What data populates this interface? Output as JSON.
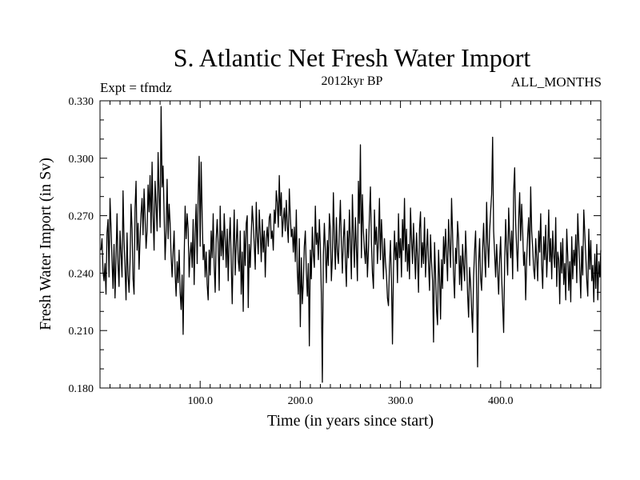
{
  "chart_data": {
    "type": "line",
    "title": "S. Atlantic Net Fresh Water Import",
    "subtitle": "2012kyr BP",
    "experiment": "Expt = tfmdz",
    "period": "ALL_MONTHS",
    "xlabel": "Time (in years since start)",
    "ylabel": "Fresh Water Import (in Sv)",
    "xlim": [
      0,
      500
    ],
    "ylim": [
      0.18,
      0.33
    ],
    "x_ticks": [
      100,
      200,
      300,
      400
    ],
    "x_tick_labels": [
      "100.0",
      "200.0",
      "300.0",
      "400.0"
    ],
    "y_ticks": [
      0.18,
      0.21,
      0.24,
      0.27,
      0.3,
      0.33
    ],
    "y_tick_labels": [
      "0.180",
      "0.210",
      "0.240",
      "0.270",
      "0.300",
      "0.330"
    ],
    "series": [
      {
        "name": "Fresh Water Import",
        "x_start": 1,
        "x_step": 1,
        "values": [
          0.252,
          0.258,
          0.241,
          0.236,
          0.245,
          0.229,
          0.261,
          0.268,
          0.238,
          0.279,
          0.264,
          0.247,
          0.232,
          0.255,
          0.227,
          0.248,
          0.271,
          0.245,
          0.233,
          0.262,
          0.25,
          0.238,
          0.283,
          0.257,
          0.243,
          0.226,
          0.261,
          0.239,
          0.23,
          0.246,
          0.276,
          0.263,
          0.237,
          0.229,
          0.274,
          0.288,
          0.252,
          0.266,
          0.242,
          0.258,
          0.271,
          0.279,
          0.26,
          0.284,
          0.269,
          0.253,
          0.262,
          0.286,
          0.272,
          0.291,
          0.261,
          0.298,
          0.27,
          0.252,
          0.288,
          0.276,
          0.262,
          0.303,
          0.281,
          0.264,
          0.327,
          0.285,
          0.296,
          0.271,
          0.247,
          0.262,
          0.289,
          0.258,
          0.276,
          0.266,
          0.249,
          0.238,
          0.251,
          0.262,
          0.24,
          0.228,
          0.246,
          0.235,
          0.252,
          0.23,
          0.221,
          0.239,
          0.208,
          0.247,
          0.275,
          0.258,
          0.271,
          0.263,
          0.238,
          0.25,
          0.256,
          0.243,
          0.268,
          0.234,
          0.261,
          0.276,
          0.245,
          0.28,
          0.301,
          0.254,
          0.298,
          0.27,
          0.247,
          0.255,
          0.238,
          0.251,
          0.234,
          0.226,
          0.252,
          0.239,
          0.262,
          0.248,
          0.271,
          0.244,
          0.23,
          0.258,
          0.268,
          0.255,
          0.231,
          0.275,
          0.249,
          0.262,
          0.247,
          0.271,
          0.258,
          0.243,
          0.263,
          0.236,
          0.257,
          0.269,
          0.246,
          0.224,
          0.252,
          0.273,
          0.239,
          0.255,
          0.268,
          0.247,
          0.241,
          0.262,
          0.229,
          0.251,
          0.22,
          0.262,
          0.244,
          0.266,
          0.27,
          0.222,
          0.255,
          0.243,
          0.26,
          0.275,
          0.266,
          0.255,
          0.242,
          0.277,
          0.259,
          0.25,
          0.273,
          0.261,
          0.246,
          0.268,
          0.251,
          0.262,
          0.238,
          0.258,
          0.264,
          0.254,
          0.269,
          0.271,
          0.258,
          0.262,
          0.252,
          0.273,
          0.266,
          0.283,
          0.277,
          0.264,
          0.291,
          0.27,
          0.282,
          0.259,
          0.268,
          0.274,
          0.262,
          0.278,
          0.265,
          0.256,
          0.284,
          0.27,
          0.259,
          0.263,
          0.251,
          0.264,
          0.246,
          0.273,
          0.241,
          0.229,
          0.258,
          0.212,
          0.248,
          0.224,
          0.235,
          0.254,
          0.262,
          0.241,
          0.228,
          0.245,
          0.202,
          0.252,
          0.237,
          0.264,
          0.25,
          0.243,
          0.275,
          0.255,
          0.261,
          0.247,
          0.268,
          0.254,
          0.229,
          0.183,
          0.249,
          0.266,
          0.252,
          0.235,
          0.257,
          0.244,
          0.271,
          0.263,
          0.236,
          0.248,
          0.282,
          0.258,
          0.242,
          0.269,
          0.251,
          0.245,
          0.263,
          0.278,
          0.255,
          0.24,
          0.258,
          0.268,
          0.246,
          0.233,
          0.262,
          0.248,
          0.273,
          0.256,
          0.237,
          0.281,
          0.259,
          0.243,
          0.269,
          0.253,
          0.236,
          0.288,
          0.266,
          0.307,
          0.248,
          0.281,
          0.262,
          0.252,
          0.245,
          0.263,
          0.238,
          0.252,
          0.27,
          0.285,
          0.256,
          0.24,
          0.232,
          0.273,
          0.255,
          0.264,
          0.245,
          0.257,
          0.279,
          0.247,
          0.268,
          0.255,
          0.237,
          0.258,
          0.246,
          0.239,
          0.227,
          0.223,
          0.244,
          0.257,
          0.236,
          0.203,
          0.242,
          0.262,
          0.247,
          0.256,
          0.235,
          0.271,
          0.248,
          0.258,
          0.238,
          0.268,
          0.252,
          0.279,
          0.246,
          0.263,
          0.241,
          0.255,
          0.237,
          0.274,
          0.258,
          0.245,
          0.266,
          0.252,
          0.237,
          0.261,
          0.248,
          0.23,
          0.263,
          0.272,
          0.243,
          0.256,
          0.245,
          0.269,
          0.238,
          0.252,
          0.263,
          0.245,
          0.231,
          0.26,
          0.246,
          0.236,
          0.204,
          0.256,
          0.24,
          0.221,
          0.213,
          0.252,
          0.238,
          0.216,
          0.247,
          0.232,
          0.259,
          0.245,
          0.263,
          0.25,
          0.236,
          0.268,
          0.254,
          0.243,
          0.279,
          0.261,
          0.239,
          0.227,
          0.253,
          0.245,
          0.267,
          0.258,
          0.234,
          0.249,
          0.231,
          0.255,
          0.244,
          0.236,
          0.262,
          0.248,
          0.229,
          0.217,
          0.243,
          0.235,
          0.221,
          0.209,
          0.238,
          0.252,
          0.262,
          0.232,
          0.191,
          0.245,
          0.258,
          0.237,
          0.231,
          0.252,
          0.266,
          0.249,
          0.238,
          0.277,
          0.256,
          0.243,
          0.262,
          0.272,
          0.281,
          0.311,
          0.262,
          0.25,
          0.238,
          0.255,
          0.241,
          0.229,
          0.247,
          0.259,
          0.238,
          0.224,
          0.209,
          0.245,
          0.268,
          0.252,
          0.239,
          0.274,
          0.259,
          0.248,
          0.262,
          0.237,
          0.283,
          0.295,
          0.266,
          0.253,
          0.241,
          0.268,
          0.282,
          0.257,
          0.276,
          0.262,
          0.244,
          0.251,
          0.226,
          0.247,
          0.26,
          0.269,
          0.244,
          0.285,
          0.262,
          0.253,
          0.242,
          0.237,
          0.258,
          0.248,
          0.236,
          0.262,
          0.251,
          0.271,
          0.244,
          0.232,
          0.259,
          0.247,
          0.265,
          0.238,
          0.252,
          0.273,
          0.246,
          0.258,
          0.237,
          0.262,
          0.249,
          0.243,
          0.269,
          0.233,
          0.251,
          0.247,
          0.224,
          0.256,
          0.24,
          0.258,
          0.234,
          0.245,
          0.226,
          0.263,
          0.249,
          0.231,
          0.246,
          0.225,
          0.259,
          0.237,
          0.252,
          0.244,
          0.26,
          0.235,
          0.271,
          0.256,
          0.242,
          0.227,
          0.254,
          0.239,
          0.273,
          0.261,
          0.249,
          0.236,
          0.228,
          0.263,
          0.242,
          0.257,
          0.236,
          0.244,
          0.225,
          0.25,
          0.232,
          0.255,
          0.226,
          0.246,
          0.238,
          0.252
        ]
      }
    ]
  }
}
